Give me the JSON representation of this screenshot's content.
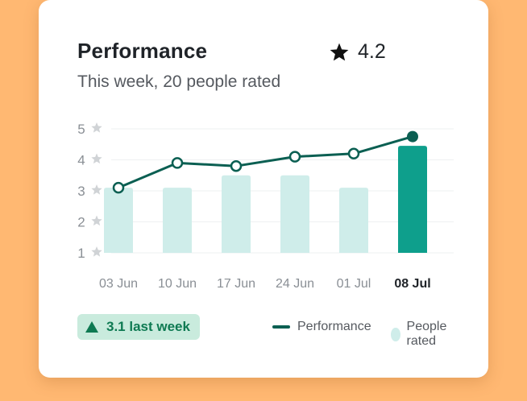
{
  "card": {
    "title": "Performance",
    "rating_value": "4.2",
    "subtitle": "This week, 20 people rated"
  },
  "colors": {
    "background": "#FFB872",
    "line": "#0B5F52",
    "bar": "#CFEDEA",
    "bar_highlight": "#0E9F8C",
    "badge_bg": "#C9EBDD",
    "badge_text": "#0E7A52",
    "star_gray": "#D0D3D6"
  },
  "legend": {
    "delta_text": "3.1 last week",
    "performance_label": "Performance",
    "people_label": "People rated"
  },
  "chart_data": {
    "type": "bar",
    "categories": [
      "03 Jun",
      "10 Jun",
      "17 Jun",
      "24 Jun",
      "01 Jul",
      "08 Jul"
    ],
    "highlight_category": "08 Jul",
    "ylim": [
      1,
      5
    ],
    "yticks": [
      "1",
      "2",
      "3",
      "4",
      "5"
    ],
    "series": [
      {
        "name": "People rated",
        "type": "bar",
        "values": [
          3.1,
          3.1,
          3.5,
          3.5,
          3.1,
          4.45
        ]
      },
      {
        "name": "Performance",
        "type": "line",
        "values": [
          3.1,
          3.9,
          3.8,
          4.1,
          4.2,
          4.75
        ]
      }
    ],
    "grid": true,
    "legend_position": "bottom"
  }
}
